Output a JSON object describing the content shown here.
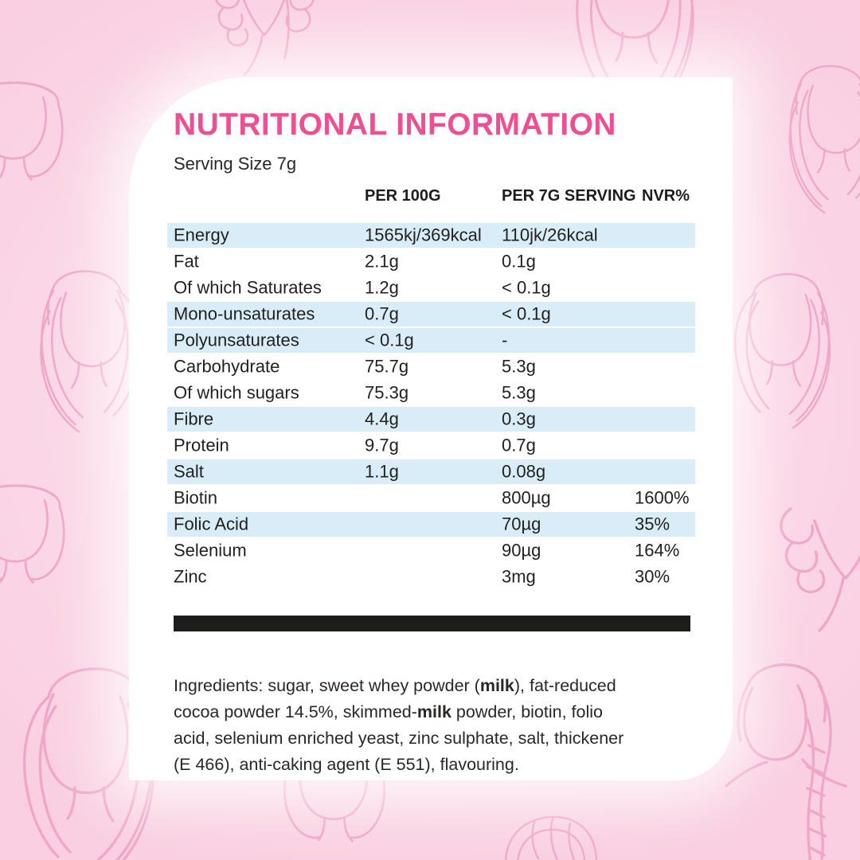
{
  "background": {
    "base_color": "#fbd9e8",
    "lineart_color": "#f0a6c7",
    "decorations": [
      "woman-face-headband-top-left",
      "woman-curly-hair-top-center",
      "woman-wavy-hair-top-right",
      "woman-short-hair-right-upper",
      "woman-long-hair-right-middle",
      "woman-wavy-hair-left-middle",
      "woman-bob-hair-left-lower",
      "woman-curly-hair-right-lower",
      "woman-wavy-hair-bottom-left",
      "woman-face-bottom-center",
      "woman-wavy-crown-bottom-center",
      "woman-fishtail-braid-bottom-right"
    ]
  },
  "card": {
    "title": "NUTRITIONAL INFORMATION",
    "title_color": "#ed4f92",
    "serving_size": "Serving Size 7g",
    "divider_color": "#1d1d1b",
    "table": {
      "headers": {
        "per_100g": "PER 100G",
        "per_7g": "PER 7G SERVING",
        "nvr": "NVR%"
      },
      "highlight_color": "#d8edf7",
      "rows": [
        {
          "name": "Energy",
          "per_100g": "1565kj/369kcal",
          "per_7g": "110jk/26kcal",
          "nvr": "",
          "highlight": true
        },
        {
          "name": "Fat",
          "per_100g": "2.1g",
          "per_7g": "0.1g",
          "nvr": "",
          "highlight": false
        },
        {
          "name": "Of which Saturates",
          "per_100g": "1.2g",
          "per_7g": "< 0.1g",
          "nvr": "",
          "highlight": false
        },
        {
          "name": "Mono-unsaturates",
          "per_100g": "0.7g",
          "per_7g": "< 0.1g",
          "nvr": "",
          "highlight": true
        },
        {
          "name": "Polyunsaturates",
          "per_100g": "< 0.1g",
          "per_7g": "-",
          "nvr": "",
          "highlight": true
        },
        {
          "name": "Carbohydrate",
          "per_100g": "75.7g",
          "per_7g": "5.3g",
          "nvr": "",
          "highlight": false
        },
        {
          "name": "Of which sugars",
          "per_100g": "75.3g",
          "per_7g": "5.3g",
          "nvr": "",
          "highlight": false
        },
        {
          "name": "Fibre",
          "per_100g": "4.4g",
          "per_7g": "0.3g",
          "nvr": "",
          "highlight": true
        },
        {
          "name": "Protein",
          "per_100g": "9.7g",
          "per_7g": "0.7g",
          "nvr": "",
          "highlight": false
        },
        {
          "name": "Salt",
          "per_100g": "1.1g",
          "per_7g": "0.08g",
          "nvr": "",
          "highlight": true
        },
        {
          "name": "Biotin",
          "per_100g": "",
          "per_7g": "800µg",
          "nvr": "1600%",
          "highlight": false
        },
        {
          "name": "Folic Acid",
          "per_100g": "",
          "per_7g": "70µg",
          "nvr": "35%",
          "highlight": true
        },
        {
          "name": "Selenium",
          "per_100g": "",
          "per_7g": "90µg",
          "nvr": "164%",
          "highlight": false
        },
        {
          "name": "Zinc",
          "per_100g": "",
          "per_7g": "3mg",
          "nvr": "30%",
          "highlight": false
        }
      ]
    },
    "ingredients_segments": [
      {
        "text": "Ingredients: sugar, sweet whey powder (",
        "bold": false
      },
      {
        "text": "milk",
        "bold": true
      },
      {
        "text": "), fat-reduced\ncocoa powder 14.5%, skimmed-",
        "bold": false
      },
      {
        "text": "milk",
        "bold": true
      },
      {
        "text": " powder, biotin, folio\nacid, selenium enriched yeast, zinc sulphate, salt, thickener\n(E 466), anti-caking agent (E 551), flavouring.",
        "bold": false
      }
    ]
  }
}
